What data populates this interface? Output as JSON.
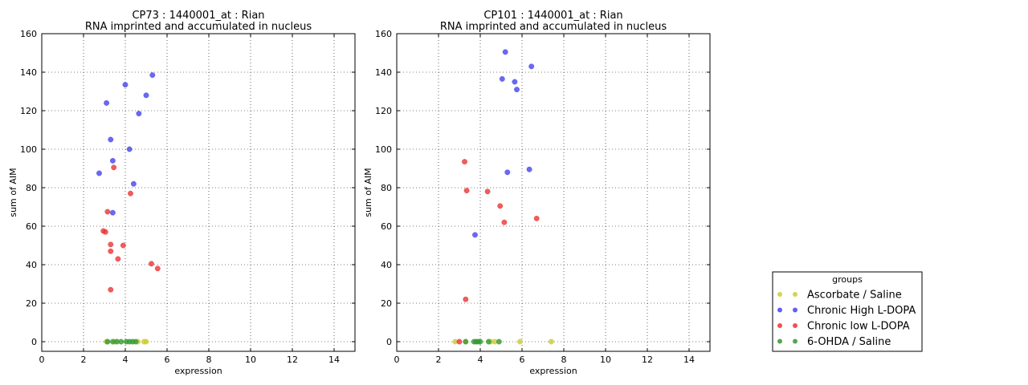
{
  "chart_data": [
    {
      "type": "scatter",
      "title": "CP73 : 1440001_at : Rian",
      "subtitle": "RNA imprinted and accumulated in nucleus",
      "xlabel": "expression",
      "ylabel": "sum of AIM",
      "xlim": [
        0,
        15
      ],
      "ylim": [
        -5,
        160
      ],
      "xticks": [
        0,
        2,
        4,
        6,
        8,
        10,
        12,
        14
      ],
      "yticks": [
        0,
        20,
        40,
        60,
        80,
        100,
        120,
        140,
        160
      ],
      "grid": true,
      "series": [
        {
          "name": "Ascorbate / Saline",
          "color": "#cccc33",
          "points": [
            [
              3.1,
              0
            ],
            [
              3.5,
              0
            ],
            [
              4.6,
              0
            ],
            [
              4.9,
              0
            ],
            [
              5.0,
              0
            ]
          ]
        },
        {
          "name": "Chronic High L-DOPA",
          "color": "#4444ee",
          "points": [
            [
              2.75,
              87.5
            ],
            [
              3.1,
              124
            ],
            [
              3.3,
              105
            ],
            [
              3.4,
              94
            ],
            [
              3.4,
              67
            ],
            [
              4.0,
              133.5
            ],
            [
              4.2,
              100
            ],
            [
              4.4,
              82
            ],
            [
              4.65,
              118.5
            ],
            [
              5.0,
              128
            ],
            [
              5.3,
              138.5
            ]
          ]
        },
        {
          "name": "Chronic low L-DOPA",
          "color": "#ee3333",
          "points": [
            [
              2.95,
              57.5
            ],
            [
              3.05,
              57
            ],
            [
              3.15,
              67.5
            ],
            [
              3.3,
              50.5
            ],
            [
              3.3,
              47
            ],
            [
              3.3,
              27
            ],
            [
              3.45,
              90.5
            ],
            [
              3.65,
              43
            ],
            [
              3.9,
              50
            ],
            [
              4.25,
              77
            ],
            [
              5.25,
              40.5
            ],
            [
              5.55,
              38
            ]
          ]
        },
        {
          "name": "6-OHDA / Saline",
          "color": "#339933",
          "points": [
            [
              3.15,
              0
            ],
            [
              3.4,
              0
            ],
            [
              3.6,
              0
            ],
            [
              3.8,
              0
            ],
            [
              4.05,
              0
            ],
            [
              4.2,
              0
            ],
            [
              4.35,
              0
            ],
            [
              4.5,
              0
            ]
          ]
        }
      ]
    },
    {
      "type": "scatter",
      "title": "CP101 : 1440001_at : Rian",
      "subtitle": "RNA imprinted and accumulated in nucleus",
      "xlabel": "expression",
      "ylabel": "sum of AIM",
      "xlim": [
        0,
        15
      ],
      "ylim": [
        -5,
        160
      ],
      "xticks": [
        0,
        2,
        4,
        6,
        8,
        10,
        12,
        14
      ],
      "yticks": [
        0,
        20,
        40,
        60,
        80,
        100,
        120,
        140,
        160
      ],
      "grid": true,
      "series": [
        {
          "name": "Ascorbate / Saline",
          "color": "#cccc33",
          "points": [
            [
              2.8,
              0
            ],
            [
              3.3,
              0
            ],
            [
              4.5,
              0
            ],
            [
              4.7,
              0
            ],
            [
              5.9,
              0
            ],
            [
              7.4,
              0
            ]
          ]
        },
        {
          "name": "Chronic High L-DOPA",
          "color": "#4444ee",
          "points": [
            [
              3.75,
              55.5
            ],
            [
              5.05,
              136.5
            ],
            [
              5.2,
              150.5
            ],
            [
              5.3,
              88
            ],
            [
              5.65,
              135
            ],
            [
              5.75,
              131
            ],
            [
              6.35,
              89.5
            ],
            [
              6.45,
              143
            ]
          ]
        },
        {
          "name": "Chronic low L-DOPA",
          "color": "#ee3333",
          "points": [
            [
              3.0,
              0
            ],
            [
              3.25,
              93.5
            ],
            [
              3.3,
              22
            ],
            [
              3.35,
              78.5
            ],
            [
              4.35,
              78
            ],
            [
              4.95,
              70.5
            ],
            [
              5.15,
              62
            ],
            [
              6.7,
              64
            ]
          ]
        },
        {
          "name": "6-OHDA / Saline",
          "color": "#339933",
          "points": [
            [
              3.3,
              0
            ],
            [
              3.7,
              0
            ],
            [
              3.8,
              0
            ],
            [
              3.9,
              0
            ],
            [
              4.0,
              0
            ],
            [
              4.4,
              0
            ],
            [
              4.9,
              0
            ]
          ]
        }
      ]
    }
  ],
  "legend": {
    "title": "groups",
    "placement": "bottom-right",
    "items": [
      {
        "label": "Ascorbate / Saline",
        "color": "#cccc33"
      },
      {
        "label": "Chronic High L-DOPA",
        "color": "#4444ee"
      },
      {
        "label": "Chronic low L-DOPA",
        "color": "#ee3333"
      },
      {
        "label": "6-OHDA / Saline",
        "color": "#339933"
      }
    ]
  }
}
